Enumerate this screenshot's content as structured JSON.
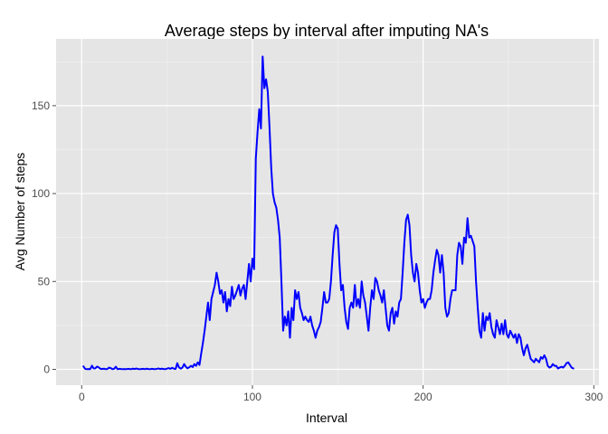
{
  "chart_data": {
    "type": "line",
    "title": "Average steps by interval after imputing NA's",
    "xlabel": "Interval",
    "ylabel": "Avg Number of steps",
    "xlim": [
      -15,
      303
    ],
    "ylim": [
      -9,
      188
    ],
    "x_ticks": [
      0,
      100,
      200,
      300
    ],
    "y_ticks": [
      0,
      50,
      100,
      150
    ],
    "x_tick_labels": [
      "0",
      "100",
      "200",
      "300"
    ],
    "y_tick_labels": [
      "0",
      "50",
      "100",
      "150"
    ],
    "grid": true,
    "legend": "none",
    "colors": {
      "panel_background": "#e5e5e5",
      "grid_major": "#ffffff",
      "grid_minor": "#f2f2f2",
      "line": "#0000ff",
      "tick": "#4d4d4d"
    },
    "series": [
      {
        "color": "#0000ff",
        "points": [
          [
            1,
            1.7
          ],
          [
            2,
            0.3
          ],
          [
            3,
            0.1
          ],
          [
            4,
            0.2
          ],
          [
            5,
            0.1
          ],
          [
            6,
            2.1
          ],
          [
            7,
            0.5
          ],
          [
            8,
            0.6
          ],
          [
            9,
            1.6
          ],
          [
            10,
            1.1
          ],
          [
            11,
            0.3
          ],
          [
            12,
            0.2
          ],
          [
            13,
            0.4
          ],
          [
            14,
            0.1
          ],
          [
            15,
            0.2
          ],
          [
            16,
            1.0
          ],
          [
            17,
            0.7
          ],
          [
            18,
            0.1
          ],
          [
            19,
            0.3
          ],
          [
            20,
            1.5
          ],
          [
            21,
            0.1
          ],
          [
            22,
            0.3
          ],
          [
            23,
            0.2
          ],
          [
            24,
            0.1
          ],
          [
            25,
            0.2
          ],
          [
            26,
            0.1
          ],
          [
            27,
            0.3
          ],
          [
            28,
            0.2
          ],
          [
            29,
            0.1
          ],
          [
            30,
            0.4
          ],
          [
            31,
            0.2
          ],
          [
            32,
            0.5
          ],
          [
            33,
            0.2
          ],
          [
            34,
            0.1
          ],
          [
            35,
            0.2
          ],
          [
            36,
            0.3
          ],
          [
            37,
            0.1
          ],
          [
            38,
            0.4
          ],
          [
            39,
            0.2
          ],
          [
            40,
            0.1
          ],
          [
            41,
            0.3
          ],
          [
            42,
            0.2
          ],
          [
            43,
            0.1
          ],
          [
            44,
            0.3
          ],
          [
            45,
            0.5
          ],
          [
            46,
            0.2
          ],
          [
            47,
            0.4
          ],
          [
            48,
            0.2
          ],
          [
            49,
            0.1
          ],
          [
            50,
            0.4
          ],
          [
            51,
            0.7
          ],
          [
            52,
            0.3
          ],
          [
            53,
            0.9
          ],
          [
            54,
            0.4
          ],
          [
            55,
            0.2
          ],
          [
            56,
            3.5
          ],
          [
            57,
            1.1
          ],
          [
            58,
            0.4
          ],
          [
            59,
            1.0
          ],
          [
            60,
            3.0
          ],
          [
            61,
            1.5
          ],
          [
            62,
            0.6
          ],
          [
            63,
            1.2
          ],
          [
            64,
            2.0
          ],
          [
            65,
            1.3
          ],
          [
            66,
            3.0
          ],
          [
            67,
            2.0
          ],
          [
            68,
            4.0
          ],
          [
            69,
            2.5
          ],
          [
            70,
            9.0
          ],
          [
            71,
            15.0
          ],
          [
            72,
            22.0
          ],
          [
            73,
            30.0
          ],
          [
            74,
            38.0
          ],
          [
            75,
            28.0
          ],
          [
            76,
            40.0
          ],
          [
            77,
            44.0
          ],
          [
            78,
            48.0
          ],
          [
            79,
            55.0
          ],
          [
            80,
            50.0
          ],
          [
            81,
            43.0
          ],
          [
            82,
            45.0
          ],
          [
            83,
            38.0
          ],
          [
            84,
            44.0
          ],
          [
            85,
            33.0
          ],
          [
            86,
            40.0
          ],
          [
            87,
            36.0
          ],
          [
            88,
            47.0
          ],
          [
            89,
            40.0
          ],
          [
            90,
            42.0
          ],
          [
            91,
            45.0
          ],
          [
            92,
            48.0
          ],
          [
            93,
            42.0
          ],
          [
            94,
            46.0
          ],
          [
            95,
            48.0
          ],
          [
            96,
            40.0
          ],
          [
            97,
            50.0
          ],
          [
            98,
            60.0
          ],
          [
            99,
            50.0
          ],
          [
            100,
            63.0
          ],
          [
            101,
            57.0
          ],
          [
            102,
            120.0
          ],
          [
            103,
            135.0
          ],
          [
            104,
            148.0
          ],
          [
            105,
            137.0
          ],
          [
            106,
            178.0
          ],
          [
            107,
            160.0
          ],
          [
            108,
            165.0
          ],
          [
            109,
            158.0
          ],
          [
            110,
            138.0
          ],
          [
            111,
            115.0
          ],
          [
            112,
            100.0
          ],
          [
            113,
            95.0
          ],
          [
            114,
            92.0
          ],
          [
            115,
            85.0
          ],
          [
            116,
            75.0
          ],
          [
            117,
            50.0
          ],
          [
            118,
            22.0
          ],
          [
            119,
            30.0
          ],
          [
            120,
            25.0
          ],
          [
            121,
            33.0
          ],
          [
            122,
            18.0
          ],
          [
            123,
            35.0
          ],
          [
            124,
            28.0
          ],
          [
            125,
            45.0
          ],
          [
            126,
            40.0
          ],
          [
            127,
            44.0
          ],
          [
            128,
            35.0
          ],
          [
            129,
            32.0
          ],
          [
            130,
            28.0
          ],
          [
            131,
            30.0
          ],
          [
            132,
            28.0
          ],
          [
            133,
            27.0
          ],
          [
            134,
            30.0
          ],
          [
            135,
            25.0
          ],
          [
            136,
            22.0
          ],
          [
            137,
            18.0
          ],
          [
            138,
            22.0
          ],
          [
            139,
            24.0
          ],
          [
            140,
            27.0
          ],
          [
            141,
            35.0
          ],
          [
            142,
            44.0
          ],
          [
            143,
            38.0
          ],
          [
            144,
            38.0
          ],
          [
            145,
            40.0
          ],
          [
            146,
            50.0
          ],
          [
            147,
            65.0
          ],
          [
            148,
            78.0
          ],
          [
            149,
            82.0
          ],
          [
            150,
            80.0
          ],
          [
            151,
            60.0
          ],
          [
            152,
            45.0
          ],
          [
            153,
            48.0
          ],
          [
            154,
            35.0
          ],
          [
            155,
            27.0
          ],
          [
            156,
            23.0
          ],
          [
            157,
            35.0
          ],
          [
            158,
            38.0
          ],
          [
            159,
            35.0
          ],
          [
            160,
            48.0
          ],
          [
            161,
            36.0
          ],
          [
            162,
            40.0
          ],
          [
            163,
            35.0
          ],
          [
            164,
            50.0
          ],
          [
            165,
            42.0
          ],
          [
            166,
            38.0
          ],
          [
            167,
            30.0
          ],
          [
            168,
            22.0
          ],
          [
            169,
            35.0
          ],
          [
            170,
            45.0
          ],
          [
            171,
            40.0
          ],
          [
            172,
            52.0
          ],
          [
            173,
            50.0
          ],
          [
            174,
            45.0
          ],
          [
            175,
            42.0
          ],
          [
            176,
            38.0
          ],
          [
            177,
            45.0
          ],
          [
            178,
            35.0
          ],
          [
            179,
            25.0
          ],
          [
            180,
            22.0
          ],
          [
            181,
            32.0
          ],
          [
            182,
            35.0
          ],
          [
            183,
            26.0
          ],
          [
            184,
            33.0
          ],
          [
            185,
            30.0
          ],
          [
            186,
            38.0
          ],
          [
            187,
            40.0
          ],
          [
            188,
            55.0
          ],
          [
            189,
            72.0
          ],
          [
            190,
            85.0
          ],
          [
            191,
            88.0
          ],
          [
            192,
            82.0
          ],
          [
            193,
            65.0
          ],
          [
            194,
            55.0
          ],
          [
            195,
            50.0
          ],
          [
            196,
            60.0
          ],
          [
            197,
            55.0
          ],
          [
            198,
            45.0
          ],
          [
            199,
            38.0
          ],
          [
            200,
            40.0
          ],
          [
            201,
            35.0
          ],
          [
            202,
            38.0
          ],
          [
            203,
            40.0
          ],
          [
            204,
            40.0
          ],
          [
            205,
            45.0
          ],
          [
            206,
            55.0
          ],
          [
            207,
            62.0
          ],
          [
            208,
            68.0
          ],
          [
            209,
            65.0
          ],
          [
            210,
            55.0
          ],
          [
            211,
            65.0
          ],
          [
            212,
            55.0
          ],
          [
            213,
            35.0
          ],
          [
            214,
            30.0
          ],
          [
            215,
            32.0
          ],
          [
            216,
            40.0
          ],
          [
            217,
            45.0
          ],
          [
            218,
            45.0
          ],
          [
            219,
            45.0
          ],
          [
            220,
            65.0
          ],
          [
            221,
            72.0
          ],
          [
            222,
            70.0
          ],
          [
            223,
            60.0
          ],
          [
            224,
            75.0
          ],
          [
            225,
            72.0
          ],
          [
            226,
            86.0
          ],
          [
            227,
            75.0
          ],
          [
            228,
            76.0
          ],
          [
            229,
            73.0
          ],
          [
            230,
            70.0
          ],
          [
            231,
            50.0
          ],
          [
            232,
            35.0
          ],
          [
            233,
            22.0
          ],
          [
            234,
            18.0
          ],
          [
            235,
            32.0
          ],
          [
            236,
            22.0
          ],
          [
            237,
            30.0
          ],
          [
            238,
            28.0
          ],
          [
            239,
            32.0
          ],
          [
            240,
            24.0
          ],
          [
            241,
            20.0
          ],
          [
            242,
            18.0
          ],
          [
            243,
            28.0
          ],
          [
            244,
            24.0
          ],
          [
            245,
            20.0
          ],
          [
            246,
            26.0
          ],
          [
            247,
            20.0
          ],
          [
            248,
            28.0
          ],
          [
            249,
            20.0
          ],
          [
            250,
            18.0
          ],
          [
            251,
            22.0
          ],
          [
            252,
            20.0
          ],
          [
            253,
            18.0
          ],
          [
            254,
            20.0
          ],
          [
            255,
            15.0
          ],
          [
            256,
            20.0
          ],
          [
            257,
            18.0
          ],
          [
            258,
            12.0
          ],
          [
            259,
            8.0
          ],
          [
            260,
            12.0
          ],
          [
            261,
            14.0
          ],
          [
            262,
            10.0
          ],
          [
            263,
            6.0
          ],
          [
            264,
            5.0
          ],
          [
            265,
            4.0
          ],
          [
            266,
            6.0
          ],
          [
            267,
            5.0
          ],
          [
            268,
            4.0
          ],
          [
            269,
            7.0
          ],
          [
            270,
            6.0
          ],
          [
            271,
            8.0
          ],
          [
            272,
            6.0
          ],
          [
            273,
            2.0
          ],
          [
            274,
            1.0
          ],
          [
            275,
            1.5
          ],
          [
            276,
            3.0
          ],
          [
            277,
            2.0
          ],
          [
            278,
            2.0
          ],
          [
            279,
            0.5
          ],
          [
            280,
            1.0
          ],
          [
            281,
            1.5
          ],
          [
            282,
            1.0
          ],
          [
            283,
            2.0
          ],
          [
            284,
            3.5
          ],
          [
            285,
            4.0
          ],
          [
            286,
            2.5
          ],
          [
            287,
            1.0
          ],
          [
            288,
            0.5
          ]
        ]
      }
    ]
  }
}
